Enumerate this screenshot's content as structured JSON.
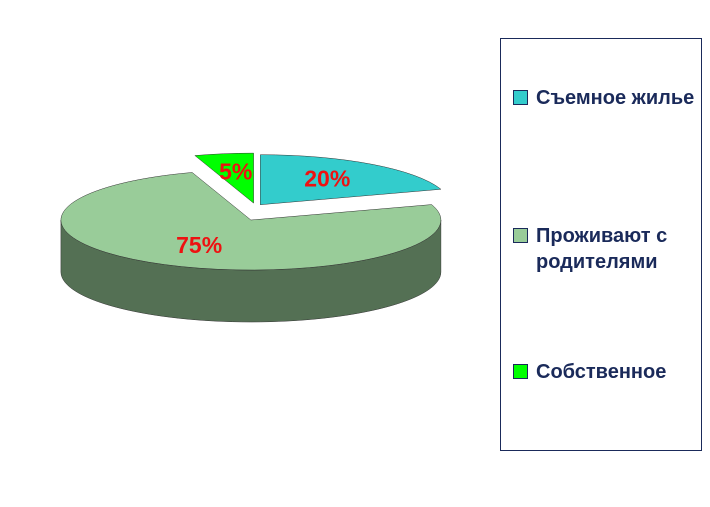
{
  "chart_data": {
    "type": "pie",
    "categories": [
      "Съемное жилье",
      "Проживают с родителями",
      "Собственное"
    ],
    "values": [
      20,
      75,
      5
    ],
    "value_labels": [
      "20%",
      "75%",
      "5%"
    ],
    "colors": [
      "#33cccc",
      "#99cc99",
      "#00ff00"
    ],
    "legend": "right"
  }
}
